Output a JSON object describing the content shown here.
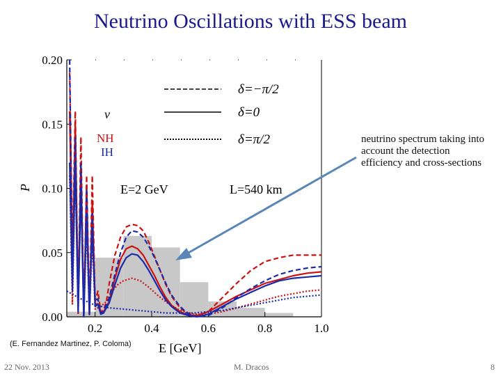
{
  "slide": {
    "title": "Neutrino Oscillations with ESS beam",
    "annotation": "neutrino spectrum taking into account the detection efficiency and cross-sections",
    "credit": "(E. Fernandez Martinez, P. Coloma)",
    "footer": {
      "date": "22 Nov. 2013",
      "author": "M. Dracos",
      "page": "8"
    }
  },
  "chart_data": {
    "type": "line",
    "xlabel": "E [GeV]",
    "ylabel": "P",
    "xlim": [
      0.1,
      1.0
    ],
    "ylim": [
      0.0,
      0.2
    ],
    "x_ticks": [
      "0.2",
      "0.4",
      "0.6",
      "0.8",
      "1.0"
    ],
    "y_ticks": [
      "0.00",
      "0.05",
      "0.10",
      "0.15",
      "0.20"
    ],
    "x_tick_values": [
      0.2,
      0.4,
      0.6,
      0.8,
      1.0
    ],
    "y_tick_values": [
      0.0,
      0.05,
      0.1,
      0.15,
      0.2
    ],
    "plot_labels": {
      "nu": "ν",
      "nh": "NH",
      "ih": "IH",
      "energy": "E=2 GeV",
      "baseline": "L=540 km"
    },
    "legend": [
      {
        "label": "δ=−π/2",
        "style": "dashed"
      },
      {
        "label": "δ=0",
        "style": "solid"
      },
      {
        "label": "δ=π/2",
        "style": "dotted"
      }
    ],
    "histogram": {
      "name": "neutrino spectrum",
      "color": "#c8c8c8",
      "bins": [
        {
          "x0": 0.1,
          "x1": 0.2,
          "value": 0.004
        },
        {
          "x0": 0.2,
          "x1": 0.3,
          "value": 0.046
        },
        {
          "x0": 0.3,
          "x1": 0.4,
          "value": 0.063
        },
        {
          "x0": 0.4,
          "x1": 0.5,
          "value": 0.054
        },
        {
          "x0": 0.5,
          "x1": 0.6,
          "value": 0.027
        },
        {
          "x0": 0.6,
          "x1": 0.7,
          "value": 0.012
        },
        {
          "x0": 0.7,
          "x1": 0.8,
          "value": 0.007
        },
        {
          "x0": 0.8,
          "x1": 0.9,
          "value": 0.003
        }
      ]
    },
    "series": [
      {
        "name": "NH δ=−π/2",
        "color": "#cc1111",
        "style": "dashed",
        "x": [
          0.11,
          0.12,
          0.13,
          0.14,
          0.15,
          0.16,
          0.17,
          0.18,
          0.19,
          0.2,
          0.21,
          0.22,
          0.23,
          0.24,
          0.25,
          0.27,
          0.29,
          0.31,
          0.33,
          0.35,
          0.37,
          0.39,
          0.41,
          0.43,
          0.45,
          0.47,
          0.5,
          0.53,
          0.56,
          0.6,
          0.65,
          0.7,
          0.75,
          0.8,
          0.85,
          0.9,
          0.95,
          1.0
        ],
        "y": [
          0.19,
          0.05,
          0.16,
          0.01,
          0.14,
          0.0,
          0.11,
          0.003,
          0.11,
          0.012,
          0.02,
          0.004,
          0.005,
          0.012,
          0.026,
          0.048,
          0.062,
          0.07,
          0.072,
          0.071,
          0.067,
          0.058,
          0.047,
          0.036,
          0.025,
          0.016,
          0.007,
          0.002,
          0.001,
          0.004,
          0.015,
          0.026,
          0.036,
          0.043,
          0.046,
          0.048,
          0.048,
          0.048
        ]
      },
      {
        "name": "NH δ=0",
        "color": "#cc1111",
        "style": "solid",
        "x": [
          0.11,
          0.12,
          0.13,
          0.14,
          0.15,
          0.16,
          0.17,
          0.18,
          0.19,
          0.2,
          0.21,
          0.22,
          0.23,
          0.25,
          0.27,
          0.29,
          0.31,
          0.33,
          0.35,
          0.37,
          0.39,
          0.41,
          0.43,
          0.45,
          0.47,
          0.5,
          0.53,
          0.56,
          0.6,
          0.65,
          0.7,
          0.75,
          0.8,
          0.85,
          0.9,
          0.95,
          1.0
        ],
        "y": [
          0.16,
          0.03,
          0.15,
          0.01,
          0.12,
          0.0,
          0.1,
          0.002,
          0.09,
          0.01,
          0.01,
          0.003,
          0.004,
          0.012,
          0.03,
          0.045,
          0.053,
          0.055,
          0.053,
          0.048,
          0.04,
          0.032,
          0.023,
          0.015,
          0.009,
          0.004,
          0.001,
          0.001,
          0.004,
          0.01,
          0.016,
          0.021,
          0.026,
          0.029,
          0.032,
          0.034,
          0.035
        ]
      },
      {
        "name": "NH δ=π/2",
        "color": "#cc1111",
        "style": "dotted",
        "x": [
          0.11,
          0.12,
          0.13,
          0.14,
          0.15,
          0.16,
          0.17,
          0.18,
          0.19,
          0.2,
          0.22,
          0.24,
          0.26,
          0.28,
          0.3,
          0.33,
          0.36,
          0.39,
          0.42,
          0.46,
          0.5,
          0.55,
          0.6,
          0.65,
          0.7,
          0.75,
          0.8,
          0.85,
          0.9,
          0.95,
          1.0
        ],
        "y": [
          0.11,
          0.01,
          0.12,
          0.002,
          0.1,
          0.001,
          0.07,
          0.001,
          0.06,
          0.006,
          0.008,
          0.012,
          0.02,
          0.025,
          0.028,
          0.03,
          0.028,
          0.023,
          0.017,
          0.01,
          0.005,
          0.002,
          0.002,
          0.004,
          0.007,
          0.01,
          0.013,
          0.016,
          0.018,
          0.02,
          0.021
        ]
      },
      {
        "name": "IH δ=−π/2",
        "color": "#1a2aa8",
        "style": "dashed",
        "x": [
          0.11,
          0.12,
          0.13,
          0.14,
          0.15,
          0.16,
          0.17,
          0.18,
          0.19,
          0.2,
          0.21,
          0.22,
          0.23,
          0.25,
          0.27,
          0.29,
          0.31,
          0.33,
          0.35,
          0.37,
          0.39,
          0.41,
          0.43,
          0.45,
          0.47,
          0.5,
          0.53,
          0.56,
          0.6,
          0.65,
          0.7,
          0.75,
          0.8,
          0.85,
          0.9,
          0.95,
          1.0
        ],
        "y": [
          0.2,
          0.03,
          0.14,
          0.005,
          0.12,
          0.0,
          0.1,
          0.002,
          0.08,
          0.012,
          0.014,
          0.003,
          0.004,
          0.015,
          0.033,
          0.05,
          0.062,
          0.067,
          0.066,
          0.062,
          0.055,
          0.046,
          0.036,
          0.026,
          0.017,
          0.008,
          0.002,
          0.0,
          0.001,
          0.007,
          0.015,
          0.022,
          0.028,
          0.033,
          0.036,
          0.038,
          0.039
        ]
      },
      {
        "name": "IH δ=0",
        "color": "#1a2aa8",
        "style": "solid",
        "x": [
          0.11,
          0.12,
          0.13,
          0.14,
          0.15,
          0.16,
          0.17,
          0.18,
          0.19,
          0.2,
          0.21,
          0.22,
          0.23,
          0.25,
          0.27,
          0.29,
          0.31,
          0.33,
          0.35,
          0.37,
          0.39,
          0.41,
          0.43,
          0.45,
          0.47,
          0.5,
          0.53,
          0.56,
          0.6,
          0.65,
          0.7,
          0.75,
          0.8,
          0.85,
          0.9,
          0.95,
          1.0
        ],
        "y": [
          0.12,
          0.02,
          0.12,
          0.004,
          0.1,
          0.0,
          0.08,
          0.002,
          0.07,
          0.008,
          0.01,
          0.002,
          0.003,
          0.011,
          0.025,
          0.038,
          0.046,
          0.049,
          0.048,
          0.043,
          0.036,
          0.028,
          0.02,
          0.013,
          0.008,
          0.003,
          0.001,
          0.0,
          0.002,
          0.008,
          0.014,
          0.019,
          0.024,
          0.028,
          0.03,
          0.031,
          0.032
        ]
      },
      {
        "name": "IH δ=π/2",
        "color": "#1a2aa8",
        "style": "dotted",
        "x": [
          0.1,
          0.15,
          0.2,
          0.25,
          0.3,
          0.35,
          0.4,
          0.45,
          0.5,
          0.55,
          0.6,
          0.65,
          0.7,
          0.75,
          0.8,
          0.85,
          0.9,
          0.95,
          1.0
        ],
        "y": [
          0.02,
          0.014,
          0.009,
          0.007,
          0.006,
          0.005,
          0.004,
          0.003,
          0.003,
          0.003,
          0.004,
          0.005,
          0.007,
          0.009,
          0.011,
          0.013,
          0.015,
          0.016,
          0.017
        ]
      }
    ]
  }
}
